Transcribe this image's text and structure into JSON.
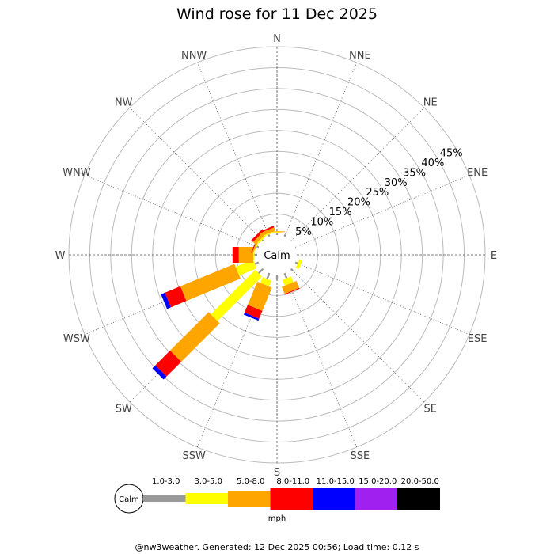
{
  "title": "Wind rose for 11 Dec 2025",
  "footer": "@nw3weather. Generated: 12 Dec 2025 00:56; Load time: 0.12 s",
  "calm_label": "Calm",
  "units_label": "mph",
  "directions": [
    "N",
    "NNE",
    "NE",
    "ENE",
    "E",
    "ESE",
    "SE",
    "SSE",
    "S",
    "SSW",
    "SW",
    "WSW",
    "W",
    "WNW",
    "NW",
    "NNW"
  ],
  "ring_labels": [
    "5%",
    "10%",
    "15%",
    "20%",
    "25%",
    "30%",
    "35%",
    "40%",
    "45%"
  ],
  "speed_bins": [
    {
      "label": "1.0-3.0",
      "color": "#999999"
    },
    {
      "label": "3.0-5.0",
      "color": "#ffff00"
    },
    {
      "label": "5.0-8.0",
      "color": "#ffa500"
    },
    {
      "label": "8.0-11.0",
      "color": "#ff0000"
    },
    {
      "label": "11.0-15.0",
      "color": "#0000ff"
    },
    {
      "label": "15.0-20.0",
      "color": "#a020f0"
    },
    {
      "label": "20.0-50.0",
      "color": "#000000"
    }
  ],
  "chart_data": {
    "type": "wind_rose",
    "title": "Wind rose for 11 Dec 2025",
    "radial_unit": "%",
    "radial_range": [
      0,
      45
    ],
    "series": [
      {
        "direction": "NNE",
        "values": [
          0.5,
          0,
          0,
          0,
          0,
          0,
          0
        ]
      },
      {
        "direction": "ESE",
        "values": [
          0.6,
          0.8,
          0,
          0,
          0,
          0,
          0
        ]
      },
      {
        "direction": "SE",
        "values": [
          0.6,
          0,
          0,
          0,
          0,
          0,
          0
        ]
      },
      {
        "direction": "SSE",
        "values": [
          1.3,
          1.5,
          1.8,
          0.2,
          0,
          0,
          0
        ]
      },
      {
        "direction": "S",
        "values": [
          1.3,
          0,
          0,
          0,
          0,
          0,
          0
        ]
      },
      {
        "direction": "SSW",
        "values": [
          1.5,
          1.5,
          6.0,
          2.0,
          0.5,
          0,
          0
        ]
      },
      {
        "direction": "SW",
        "values": [
          1.5,
          15.0,
          13.0,
          5.0,
          1.0,
          0,
          0
        ]
      },
      {
        "direction": "WSW",
        "values": [
          1.0,
          4.5,
          14.0,
          4.0,
          1.0,
          0,
          0
        ]
      },
      {
        "direction": "W",
        "values": [
          0.7,
          0.2,
          3.5,
          1.5,
          0,
          0,
          0
        ]
      },
      {
        "direction": "WNW",
        "values": [
          0.5,
          0.2,
          0.3,
          0.2,
          0,
          0,
          0
        ]
      },
      {
        "direction": "NW",
        "values": [
          0.3,
          0.4,
          0.8,
          0.6,
          0,
          0,
          0
        ]
      },
      {
        "direction": "NNW",
        "values": [
          0.5,
          0.3,
          0.8,
          0.4,
          0,
          0,
          0
        ]
      },
      {
        "direction": "N",
        "values": [
          0.5,
          0.2,
          0.2,
          0,
          0,
          0,
          0
        ]
      }
    ]
  }
}
